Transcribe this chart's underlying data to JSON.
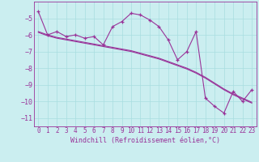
{
  "xlabel": "Windchill (Refroidissement éolien,°C)",
  "bg_color": "#cbeef0",
  "line_color": "#993399",
  "x_data": [
    0,
    1,
    2,
    3,
    4,
    5,
    6,
    7,
    8,
    9,
    10,
    11,
    12,
    13,
    14,
    15,
    16,
    17,
    18,
    19,
    20,
    21,
    22,
    23
  ],
  "y_data": [
    -4.6,
    -6.0,
    -5.8,
    -6.1,
    -6.0,
    -6.2,
    -6.1,
    -6.6,
    -5.5,
    -5.2,
    -4.7,
    -4.8,
    -5.1,
    -5.5,
    -6.3,
    -7.5,
    -7.0,
    -5.8,
    -9.8,
    -10.3,
    -10.7,
    -9.4,
    -10.0,
    -9.3
  ],
  "y_trend1": [
    -5.8,
    -6.0,
    -6.15,
    -6.25,
    -6.35,
    -6.45,
    -6.55,
    -6.65,
    -6.75,
    -6.85,
    -6.95,
    -7.1,
    -7.25,
    -7.4,
    -7.6,
    -7.8,
    -8.0,
    -8.25,
    -8.55,
    -8.9,
    -9.25,
    -9.55,
    -9.8,
    -10.05
  ],
  "y_trend2": [
    -5.85,
    -6.05,
    -6.2,
    -6.3,
    -6.4,
    -6.5,
    -6.6,
    -6.7,
    -6.8,
    -6.9,
    -7.0,
    -7.15,
    -7.3,
    -7.45,
    -7.65,
    -7.85,
    -8.05,
    -8.3,
    -8.6,
    -8.95,
    -9.3,
    -9.6,
    -9.85,
    -10.1
  ],
  "ylim": [
    -11.5,
    -4.0
  ],
  "xlim": [
    -0.5,
    23.5
  ],
  "yticks": [
    -5,
    -6,
    -7,
    -8,
    -9,
    -10,
    -11
  ],
  "xticks": [
    0,
    1,
    2,
    3,
    4,
    5,
    6,
    7,
    8,
    9,
    10,
    11,
    12,
    13,
    14,
    15,
    16,
    17,
    18,
    19,
    20,
    21,
    22,
    23
  ],
  "grid_color": "#a8dde0",
  "font_color": "#993399",
  "tick_fontsize": 5.5,
  "xlabel_fontsize": 6.0
}
